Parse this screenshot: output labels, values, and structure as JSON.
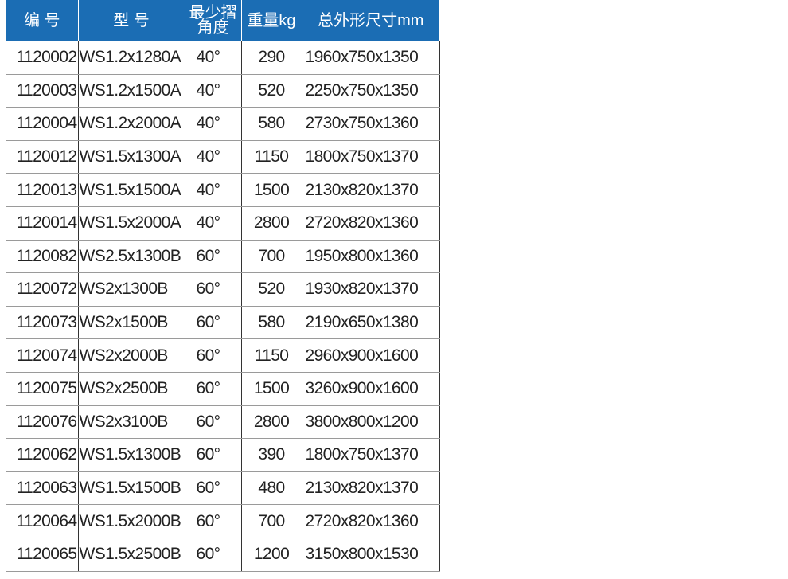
{
  "table": {
    "header": [
      [
        "编 号"
      ],
      [
        "型 号"
      ],
      [
        "最少摺",
        "角度"
      ],
      [
        "重量kg"
      ],
      [
        "总外形尺寸mm"
      ]
    ],
    "rows": [
      [
        "1120002",
        "WS1.2x1280A",
        "40°",
        "290",
        "1960x750x1350"
      ],
      [
        "1120003",
        "WS1.2x1500A",
        "40°",
        "520",
        "2250x750x1350"
      ],
      [
        "1120004",
        "WS1.2x2000A",
        "40°",
        "580",
        "2730x750x1360"
      ],
      [
        "1120012",
        "WS1.5x1300A",
        "40°",
        "1150",
        "1800x750x1370"
      ],
      [
        "1120013",
        "WS1.5x1500A",
        "40°",
        "1500",
        "2130x820x1370"
      ],
      [
        "1120014",
        "WS1.5x2000A",
        "40°",
        "2800",
        "2720x820x1360"
      ],
      [
        "1120082",
        "WS2.5x1300B",
        "60°",
        "700",
        "1950x800x1360"
      ],
      [
        "1120072",
        "WS2x1300B",
        "60°",
        "520",
        "1930x820x1370"
      ],
      [
        "1120073",
        "WS2x1500B",
        "60°",
        "580",
        "2190x650x1380"
      ],
      [
        "1120074",
        "WS2x2000B",
        "60°",
        "1150",
        "2960x900x1600"
      ],
      [
        "1120075",
        "WS2x2500B",
        "60°",
        "1500",
        "3260x900x1600"
      ],
      [
        "1120076",
        "WS2x3100B",
        "60°",
        "2800",
        "3800x800x1200"
      ],
      [
        "1120062",
        "WS1.5x1300B",
        "60°",
        "390",
        "1800x750x1370"
      ],
      [
        "1120063",
        "WS1.5x1500B",
        "60°",
        "480",
        "2130x820x1370"
      ],
      [
        "1120064",
        "WS1.5x2000B",
        "60°",
        "700",
        "2720x820x1360"
      ],
      [
        "1120065",
        "WS1.5x2500B",
        "60°",
        "1200",
        "3150x800x1530"
      ]
    ]
  }
}
